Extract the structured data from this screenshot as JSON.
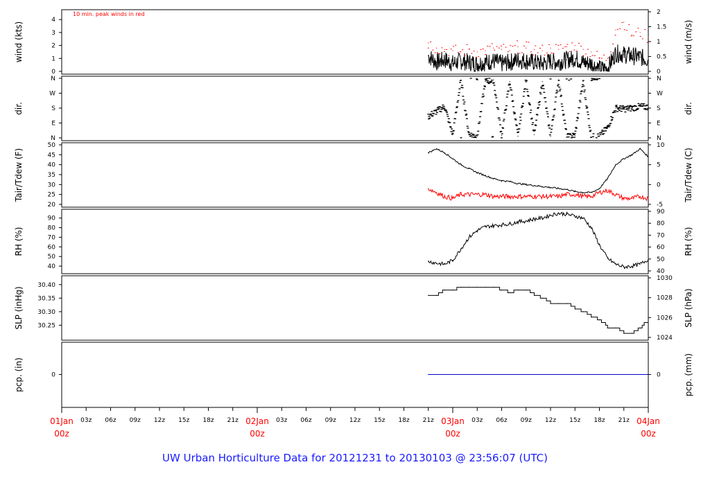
{
  "chart_data": {
    "type": "line",
    "footer": "UW Urban Horticulture Data for 20121231  to  20130103 @ 23:56:07  (UTC)",
    "x_major_labels": [
      {
        "day": "01Jan",
        "time": "00z"
      },
      {
        "day": "02Jan",
        "time": "00z"
      },
      {
        "day": "03Jan",
        "time": "00z"
      },
      {
        "day": "04Jan",
        "time": "00z"
      }
    ],
    "x_minor_labels": [
      "03z",
      "06z",
      "09z",
      "12z",
      "15z",
      "18z",
      "21z",
      "03z",
      "06z",
      "09z",
      "12z",
      "15z",
      "18z",
      "21z",
      "03z",
      "06z",
      "09z",
      "12z",
      "15z",
      "18z",
      "21z"
    ],
    "x_range_hours": [
      0,
      72
    ],
    "data_start_hour": 45,
    "panels": [
      {
        "id": "wind",
        "ylabel_left": "wind (kts)",
        "ylabel_right": "wind (m/s)",
        "left_ticks": [
          "0",
          "1",
          "2",
          "3",
          "4"
        ],
        "right_ticks": [
          "0",
          "0.5",
          "1",
          "1.5",
          "2"
        ],
        "ylim": [
          0,
          4.6
        ],
        "annotation": "10 min. peak winds in red",
        "series": [
          {
            "color": "#000000",
            "hours": [
              45,
              46,
              47,
              48,
              49,
              50,
              51,
              52,
              53,
              54,
              55,
              56,
              57,
              58,
              59,
              60,
              61,
              62,
              63,
              64,
              65,
              66,
              67,
              68,
              69,
              70,
              71,
              72
            ],
            "values": [
              1.2,
              0.7,
              0.9,
              0.6,
              0.8,
              0.7,
              0.6,
              0.7,
              0.8,
              0.6,
              0.7,
              0.9,
              0.8,
              0.7,
              0.6,
              0.8,
              0.7,
              0.9,
              1.0,
              0.7,
              0.6,
              0.2,
              0.2,
              1.4,
              1.3,
              1.2,
              1.1,
              0.9
            ]
          },
          {
            "color": "#ff0000",
            "hours": [
              45,
              46,
              47,
              48,
              49,
              50,
              51,
              52,
              53,
              54,
              55,
              56,
              57,
              58,
              59,
              60,
              61,
              62,
              63,
              64,
              65,
              66,
              67,
              68,
              69,
              70,
              71,
              72
            ],
            "values": [
              2.2,
              1.8,
              1.7,
              1.6,
              1.5,
              1.7,
              1.5,
              1.6,
              1.8,
              1.7,
              1.6,
              1.9,
              1.8,
              1.7,
              1.6,
              1.8,
              1.7,
              1.9,
              2.0,
              1.7,
              1.5,
              1.0,
              1.0,
              3.2,
              3.8,
              2.8,
              3.0,
              2.6
            ]
          }
        ]
      },
      {
        "id": "dir",
        "ylabel_left": "dir.",
        "ylabel_right": "dir.",
        "left_ticks": [
          "N",
          "E",
          "S",
          "W",
          "N"
        ],
        "right_ticks": [
          "N",
          "E",
          "S",
          "W",
          "N"
        ],
        "ylim": [
          0,
          360
        ],
        "series": [
          {
            "color": "#000000",
            "hours": [
              45,
              46,
              47,
              48,
              49,
              50,
              51,
              52,
              53,
              54,
              55,
              56,
              57,
              58,
              59,
              60,
              61,
              62,
              63,
              64,
              65,
              66,
              67,
              68,
              69,
              70,
              71,
              72
            ],
            "values": [
              130,
              160,
              190,
              20,
              350,
              20,
              10,
              340,
              350,
              15,
              340,
              10,
              350,
              20,
              340,
              10,
              350,
              5,
              15,
              340,
              5,
              10,
              60,
              180,
              175,
              180,
              190,
              185
            ]
          }
        ]
      },
      {
        "id": "temp",
        "ylabel_left": "Tair/Tdew (F)",
        "ylabel_right": "Tair/Tdew (C)",
        "left_ticks": [
          "20",
          "25",
          "30",
          "35",
          "40",
          "45",
          "50"
        ],
        "right_ticks": [
          "-5",
          "0",
          "5",
          "10"
        ],
        "ylim": [
          20,
          50
        ],
        "series": [
          {
            "name": "Tair",
            "color": "#000000",
            "hours": [
              45,
              46,
              47,
              48,
              49,
              50,
              51,
              52,
              53,
              54,
              55,
              56,
              57,
              58,
              59,
              60,
              61,
              62,
              63,
              64,
              65,
              66,
              67,
              68,
              69,
              70,
              71,
              72
            ],
            "values": [
              46,
              48,
              46,
              43,
              40,
              38,
              36,
              34.5,
              33,
              32,
              31.5,
              30.5,
              30,
              29.5,
              29,
              28.5,
              28,
              27.5,
              26.5,
              26,
              26,
              28,
              33,
              40,
              43,
              45,
              48,
              44
            ]
          },
          {
            "name": "Tdew",
            "color": "#ff0000",
            "hours": [
              45,
              46,
              47,
              48,
              49,
              50,
              51,
              52,
              53,
              54,
              55,
              56,
              57,
              58,
              59,
              60,
              61,
              62,
              63,
              64,
              65,
              66,
              67,
              68,
              69,
              70,
              71,
              72
            ],
            "values": [
              28,
              26,
              24,
              23,
              25,
              25,
              25,
              25,
              24,
              24,
              24,
              24,
              24,
              24,
              24,
              24,
              24,
              25,
              25,
              24,
              24,
              26,
              27,
              25,
              23,
              23,
              24,
              23
            ]
          }
        ]
      },
      {
        "id": "rh",
        "ylabel_left": "RH (%)",
        "ylabel_right": "RH (%)",
        "left_ticks": [
          "40",
          "50",
          "60",
          "70",
          "80",
          "90"
        ],
        "right_ticks": [
          "40",
          "50",
          "60",
          "70",
          "80",
          "90"
        ],
        "ylim": [
          35,
          97
        ],
        "series": [
          {
            "color": "#000000",
            "hours": [
              45,
              46,
              47,
              48,
              49,
              50,
              51,
              52,
              53,
              54,
              55,
              56,
              57,
              58,
              59,
              60,
              61,
              62,
              63,
              64,
              65,
              66,
              67,
              68,
              69,
              70,
              71,
              72
            ],
            "values": [
              45,
              43,
              42,
              46,
              58,
              70,
              77,
              81,
              82,
              83,
              84,
              86,
              87,
              89,
              90,
              93,
              95,
              94,
              92,
              90,
              80,
              62,
              48,
              42,
              39,
              40,
              42,
              47
            ]
          }
        ]
      },
      {
        "id": "slp",
        "ylabel_left": "SLP (inHg)",
        "ylabel_right": "SLP (hPa)",
        "left_ticks": [
          "30.25",
          "30.30",
          "30.35",
          "30.40"
        ],
        "right_ticks": [
          "1024",
          "1026",
          "1028",
          "1030"
        ],
        "ylim": [
          30.205,
          30.425
        ],
        "series": [
          {
            "color": "#000000",
            "hours": [
              45,
              46,
              47,
              48,
              49,
              50,
              51,
              52,
              53,
              54,
              55,
              56,
              57,
              58,
              59,
              60,
              61,
              62,
              63,
              64,
              65,
              66,
              67,
              68,
              69,
              70,
              71,
              72
            ],
            "values": [
              30.36,
              30.36,
              30.38,
              30.38,
              30.39,
              30.39,
              30.39,
              30.39,
              30.39,
              30.38,
              30.37,
              30.38,
              30.38,
              30.36,
              30.35,
              30.33,
              30.33,
              30.33,
              30.31,
              30.3,
              30.28,
              30.27,
              30.24,
              30.24,
              30.22,
              30.22,
              30.24,
              30.27
            ]
          }
        ]
      },
      {
        "id": "pcp",
        "ylabel_left": "pcp. (in)",
        "ylabel_right": "pcp. (mm)",
        "left_ticks": [
          "0"
        ],
        "right_ticks": [
          "0"
        ],
        "ylim": [
          -1,
          1
        ],
        "series": [
          {
            "color": "#0000cc",
            "hours": [
              45,
              72
            ],
            "values": [
              0,
              0
            ]
          }
        ]
      }
    ]
  }
}
